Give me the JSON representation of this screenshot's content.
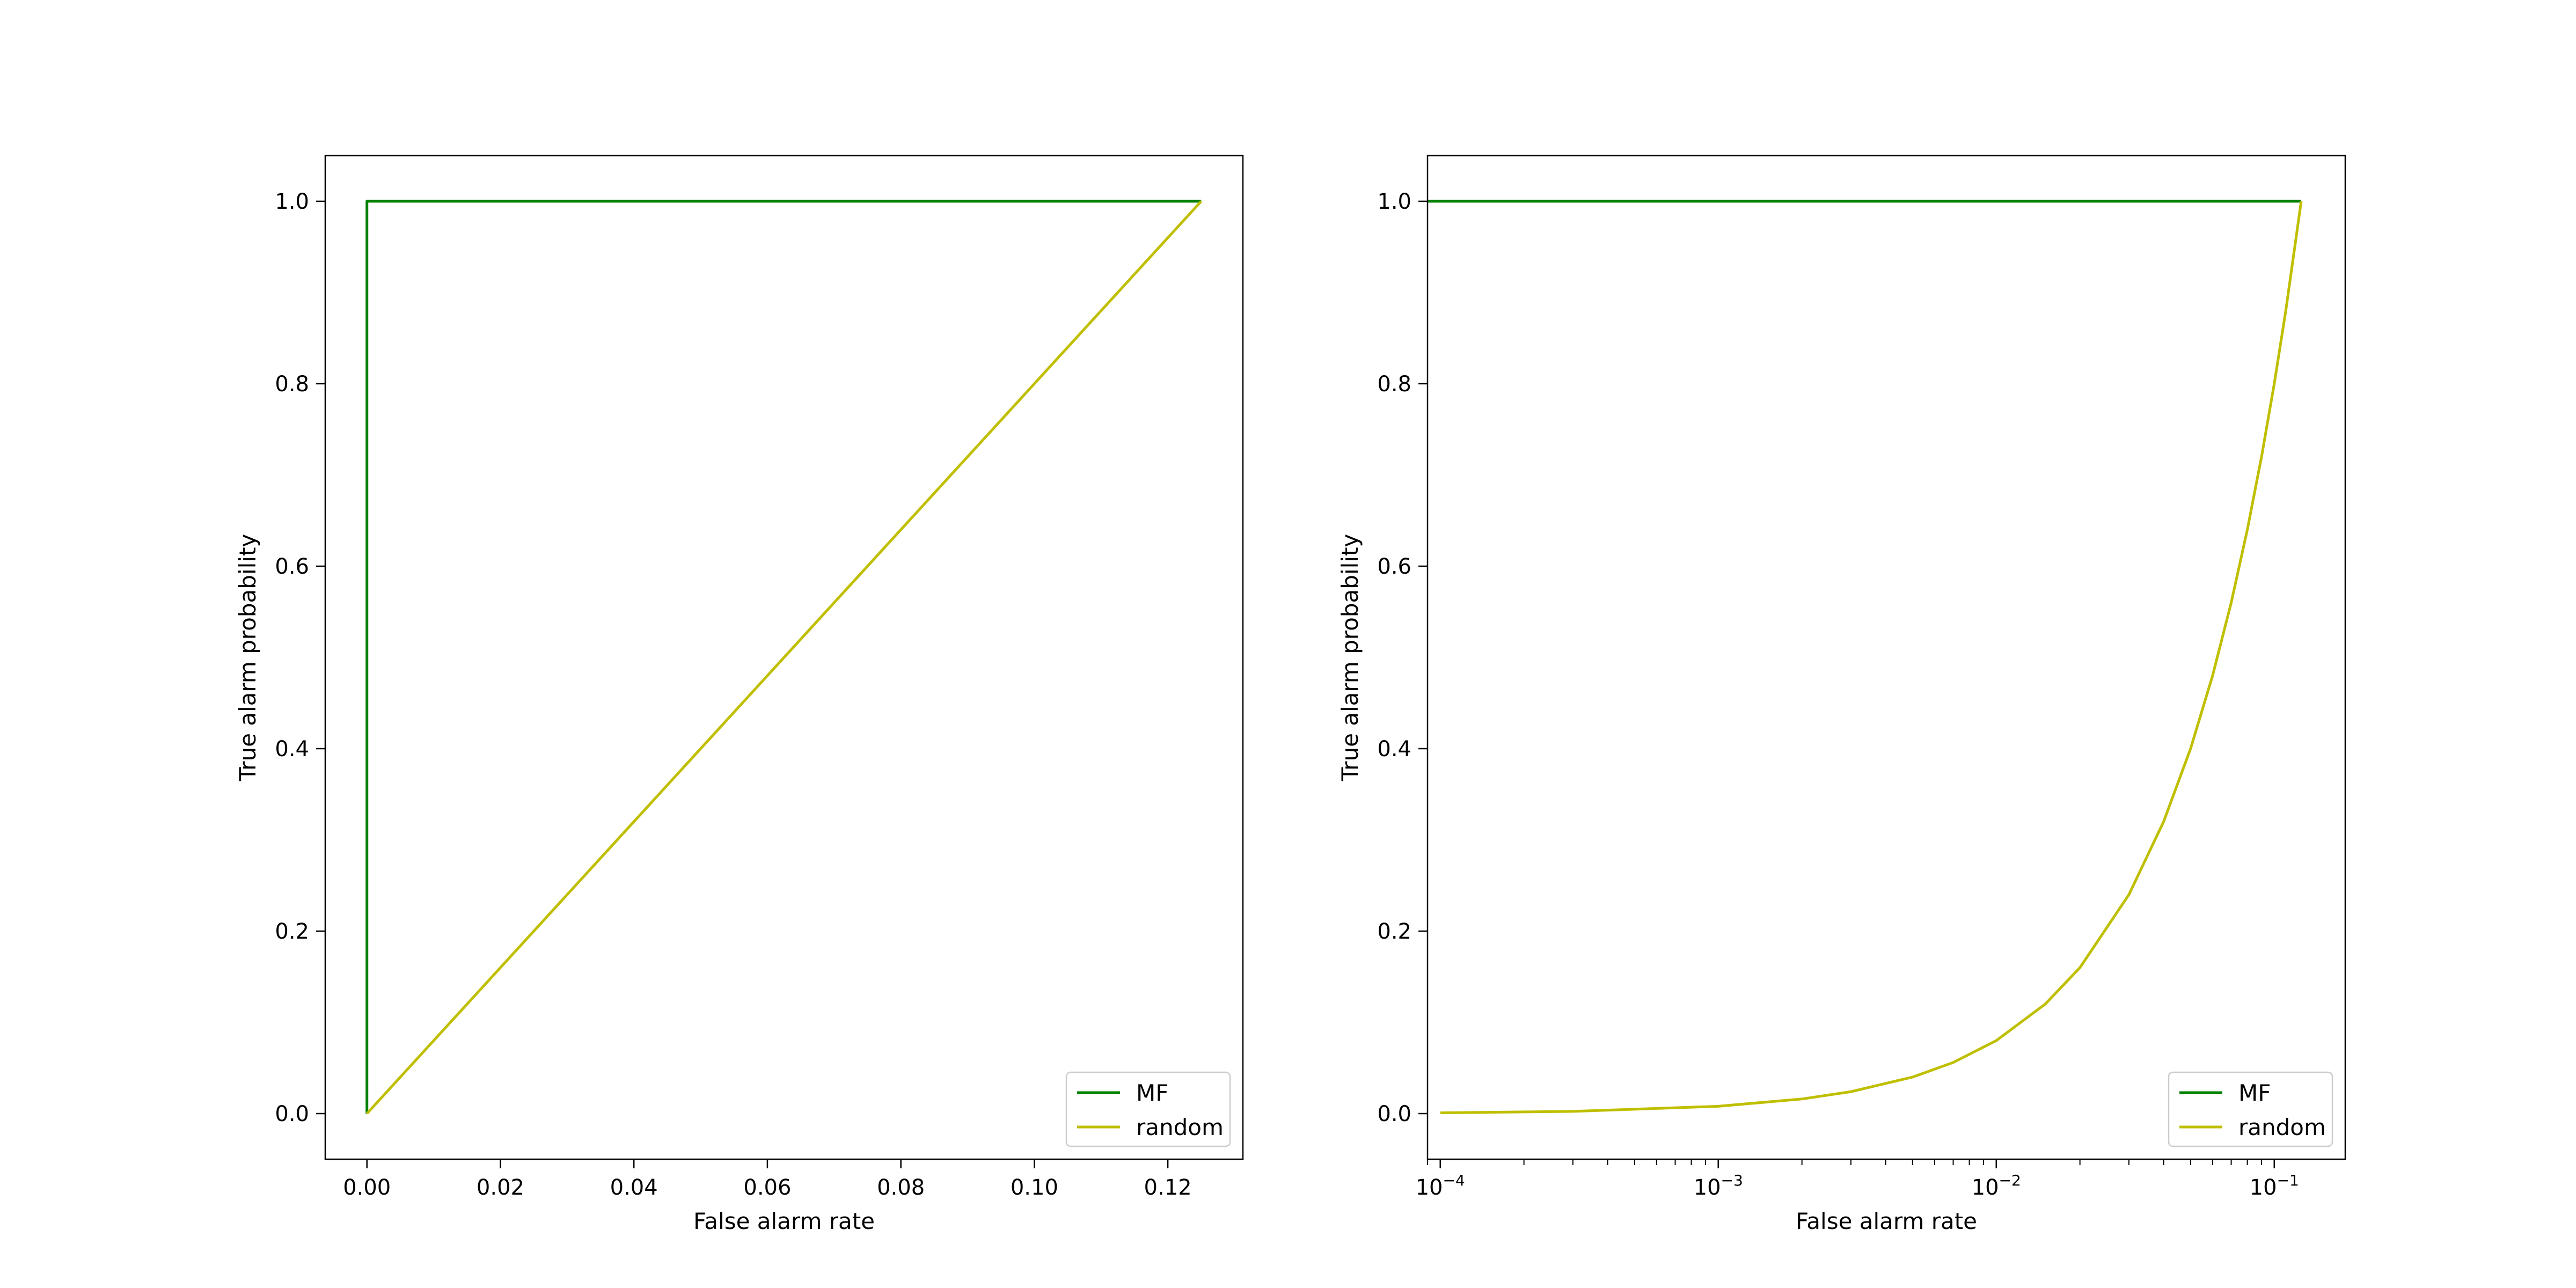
{
  "chart_data": [
    {
      "type": "line",
      "xlabel": "False alarm rate",
      "ylabel": "True alarm probability",
      "xscale": "linear",
      "xlim": [
        -0.00625,
        0.13125
      ],
      "ylim": [
        -0.05,
        1.05
      ],
      "xticks": [
        0.0,
        0.02,
        0.04,
        0.06,
        0.08,
        0.1,
        0.12
      ],
      "xtick_labels": [
        "0.00",
        "0.02",
        "0.04",
        "0.06",
        "0.08",
        "0.10",
        "0.12"
      ],
      "yticks": [
        0.0,
        0.2,
        0.4,
        0.6,
        0.8,
        1.0
      ],
      "ytick_labels": [
        "0.0",
        "0.2",
        "0.4",
        "0.6",
        "0.8",
        "1.0"
      ],
      "grid": false,
      "legend_position": "lower-right",
      "series": [
        {
          "name": "MF",
          "color": "#008000",
          "x": [
            0.0,
            0.0,
            0.125
          ],
          "y": [
            0.0,
            1.0,
            1.0
          ]
        },
        {
          "name": "random",
          "color": "#bfbf00",
          "x": [
            0.0,
            0.125
          ],
          "y": [
            0.0,
            1.0
          ]
        }
      ]
    },
    {
      "type": "line",
      "xlabel": "False alarm rate",
      "ylabel": "True alarm probability",
      "xscale": "log",
      "xlim": [
        9e-05,
        0.18
      ],
      "ylim": [
        -0.05,
        1.05
      ],
      "xticks": [
        0.0001,
        0.001,
        0.01,
        0.1
      ],
      "xtick_labels": [
        {
          "base": "10",
          "exp": "−4"
        },
        {
          "base": "10",
          "exp": "−3"
        },
        {
          "base": "10",
          "exp": "−2"
        },
        {
          "base": "10",
          "exp": "−1"
        }
      ],
      "yticks": [
        0.0,
        0.2,
        0.4,
        0.6,
        0.8,
        1.0
      ],
      "ytick_labels": [
        "0.0",
        "0.2",
        "0.4",
        "0.6",
        "0.8",
        "1.0"
      ],
      "grid": false,
      "legend_position": "lower-right",
      "series": [
        {
          "name": "MF",
          "color": "#008000",
          "x": [
            9e-05,
            0.125
          ],
          "y": [
            1.0,
            1.0
          ]
        },
        {
          "name": "random",
          "color": "#bfbf00",
          "x": [
            0.0001,
            0.0003,
            0.001,
            0.002,
            0.003,
            0.005,
            0.007,
            0.01,
            0.015,
            0.02,
            0.03,
            0.04,
            0.05,
            0.06,
            0.07,
            0.08,
            0.09,
            0.1,
            0.11,
            0.125
          ],
          "y": [
            0.0008,
            0.0024,
            0.008,
            0.016,
            0.024,
            0.04,
            0.056,
            0.08,
            0.12,
            0.16,
            0.24,
            0.32,
            0.4,
            0.48,
            0.56,
            0.64,
            0.72,
            0.8,
            0.88,
            1.0
          ]
        }
      ]
    }
  ]
}
